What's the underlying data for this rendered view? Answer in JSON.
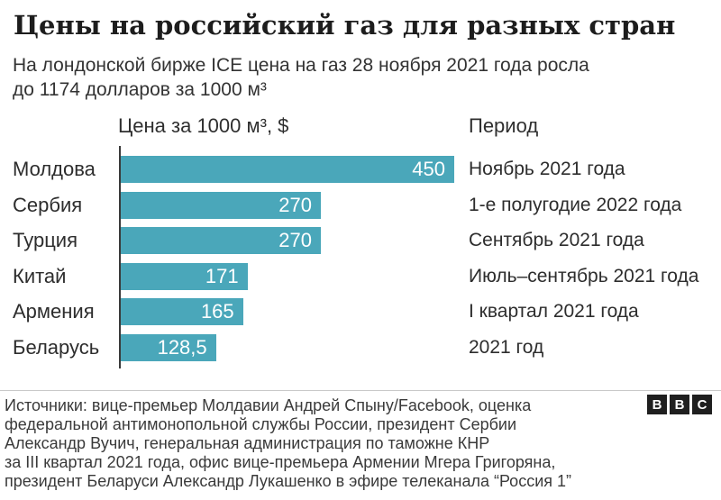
{
  "title": "Цены на российский газ для разных стран",
  "subtitle_lines": [
    "На лондонской бирже ICE цена на газ 28 ноября 2021 года росла",
    "до 1174 долларов за 1000 м³"
  ],
  "chart_data": {
    "type": "bar",
    "orientation": "horizontal",
    "title": "Цены на российский газ для разных стран",
    "value_column_header": "Цена за 1000 м³, $",
    "period_column_header": "Период",
    "categories": [
      "Молдова",
      "Сербия",
      "Турция",
      "Китай",
      "Армения",
      "Беларусь"
    ],
    "values": [
      450,
      270,
      270,
      171,
      165,
      128.5
    ],
    "value_labels": [
      "450",
      "270",
      "270",
      "171",
      "165",
      "128,5"
    ],
    "periods": [
      "Ноябрь 2021 года",
      "1-е полугодие 2022 года",
      "Сентябрь 2021 года",
      "Июль–сентябрь 2021 года",
      "I квартал 2021 года",
      "2021 год"
    ],
    "xlim": [
      0,
      450
    ],
    "grid": false,
    "legend": false,
    "value_labels_position": "inside-right"
  },
  "footer": {
    "sources_lines": [
      "Источники: вице-премьер Молдавии Андрей Спыну/Facebook, оценка",
      "федеральной антимонопольной службы России, президент Сербии",
      "Александр Вучич, генеральная администрация по таможне КНР",
      "за III квартал 2021 года, офис вице-премьера Армении Мгера Григоряна,",
      "президент Беларуси Александр Лукашенко в эфире телеканала “Россия 1”"
    ],
    "logo_letters": [
      "B",
      "B",
      "C"
    ]
  },
  "colors": {
    "bar": "#4AA7BA",
    "title_text": "#1d1d1d",
    "body_text": "#333333",
    "value_label_text": "#ffffff",
    "axis_line": "#3a3a3a",
    "divider": "#c9c9c9",
    "logo_background": "#1f1f1f",
    "background": "#ffffff"
  }
}
